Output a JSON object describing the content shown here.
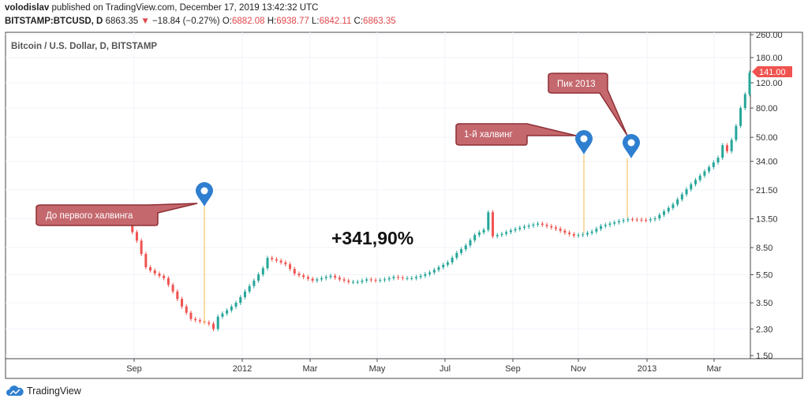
{
  "header": {
    "author": "volodislav",
    "published_text": "published on TradingView.com, December 17, 2019 13:42:32 UTC",
    "symbol": "BITSTAMP:BTCUSD, D",
    "last": "6863.35",
    "arrow": "▼",
    "change": "−18.84 (−0.27%)",
    "o_label": "O:",
    "o_val": "6882.08",
    "h_label": "H:",
    "h_val": "6938.77",
    "l_label": "L:",
    "l_val": "6842.11",
    "c_label": "C:",
    "c_val": "6863.35"
  },
  "legend_title": "Bitcoin / U.S. Dollar, D, BITSTAMP",
  "big_label": "+341,90%",
  "price_tag": "141.00",
  "footer": {
    "brand": "TradingView"
  },
  "colors": {
    "up": "#26a69a",
    "down": "#ef5350",
    "callout_fill": "#c4686e",
    "callout_stroke": "#8e2f35",
    "marker": "#2f7fd0",
    "tag": "#ef5350"
  },
  "chart_data": {
    "type": "candlestick",
    "yscale": "log",
    "y_ticks": [
      "260.00",
      "180.00",
      "120.00",
      "80.00",
      "50.00",
      "34.00",
      "21.50",
      "13.50",
      "8.50",
      "5.50",
      "3.50",
      "2.30",
      "1.50"
    ],
    "x_ticks": [
      "Sep",
      "2012",
      "Mar",
      "May",
      "Jul",
      "Sep",
      "Nov",
      "2013",
      "Mar"
    ],
    "series": [
      {
        "values": [
          [
            0,
            12.5
          ],
          [
            2,
            9.5
          ],
          [
            4,
            6.2
          ],
          [
            6,
            5.6
          ],
          [
            8,
            5.2
          ],
          [
            10,
            4.2
          ],
          [
            12,
            3.3
          ],
          [
            14,
            2.7
          ],
          [
            16,
            2.6
          ],
          [
            18,
            2.5
          ],
          [
            19,
            2.3
          ],
          [
            20,
            2.8
          ],
          [
            22,
            3.1
          ],
          [
            24,
            3.5
          ],
          [
            26,
            4.2
          ],
          [
            28,
            5.0
          ],
          [
            30,
            6.1
          ],
          [
            31,
            7.2
          ],
          [
            33,
            6.9
          ],
          [
            35,
            6.5
          ],
          [
            37,
            5.6
          ],
          [
            39,
            5.3
          ],
          [
            41,
            5.0
          ],
          [
            43,
            5.2
          ],
          [
            45,
            5.4
          ],
          [
            47,
            5.1
          ],
          [
            49,
            4.9
          ],
          [
            51,
            4.9
          ],
          [
            53,
            5.1
          ],
          [
            55,
            5.0
          ],
          [
            57,
            5.1
          ],
          [
            59,
            5.3
          ],
          [
            61,
            5.2
          ],
          [
            63,
            5.2
          ],
          [
            65,
            5.4
          ],
          [
            67,
            5.7
          ],
          [
            69,
            6.2
          ],
          [
            71,
            6.7
          ],
          [
            73,
            7.8
          ],
          [
            75,
            8.8
          ],
          [
            77,
            10.4
          ],
          [
            79,
            11.3
          ],
          [
            80,
            15.0
          ],
          [
            81,
            10.2
          ],
          [
            83,
            10.6
          ],
          [
            85,
            11.2
          ],
          [
            87,
            11.7
          ],
          [
            89,
            12.1
          ],
          [
            91,
            12.5
          ],
          [
            93,
            12.0
          ],
          [
            95,
            11.5
          ],
          [
            97,
            10.8
          ],
          [
            99,
            10.3
          ],
          [
            101,
            10.5
          ],
          [
            103,
            11.0
          ],
          [
            105,
            12.0
          ],
          [
            107,
            12.5
          ],
          [
            109,
            13.0
          ],
          [
            111,
            13.4
          ],
          [
            113,
            13.3
          ],
          [
            115,
            13.2
          ],
          [
            117,
            13.6
          ],
          [
            119,
            15.2
          ],
          [
            121,
            17.0
          ],
          [
            123,
            20.0
          ],
          [
            125,
            23.5
          ],
          [
            127,
            27.0
          ],
          [
            129,
            31.0
          ],
          [
            131,
            36.0
          ],
          [
            132,
            44.0
          ],
          [
            133,
            40.0
          ],
          [
            134,
            48.0
          ],
          [
            135,
            60.0
          ],
          [
            136,
            80.0
          ],
          [
            137,
            100.0
          ],
          [
            138,
            141.0
          ]
        ]
      }
    ]
  },
  "annotations": {
    "labels": [
      "До первого халвинга",
      "1-й халвинг",
      "Пик 2013"
    ]
  }
}
